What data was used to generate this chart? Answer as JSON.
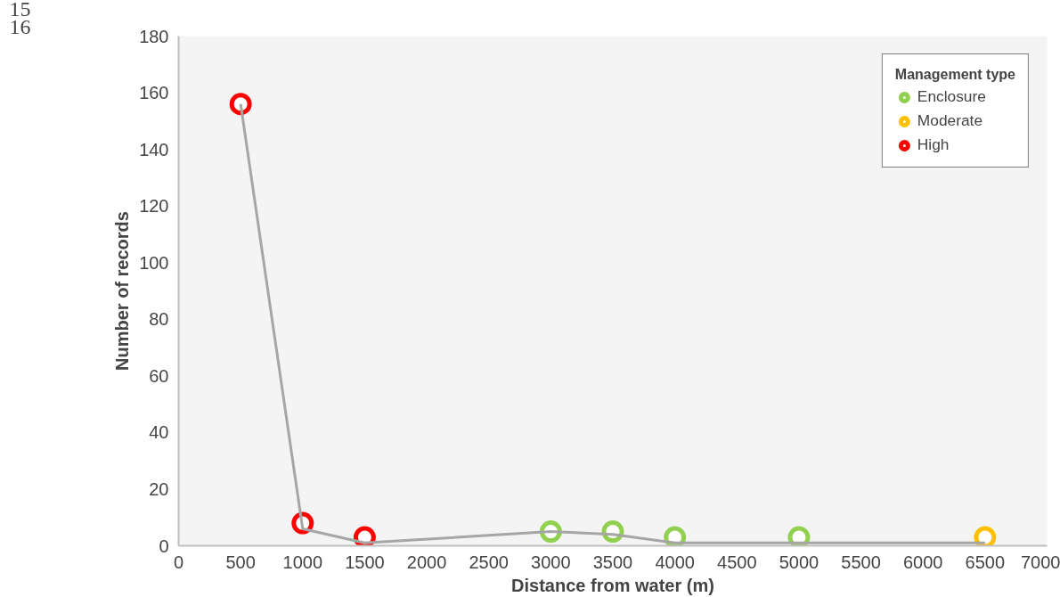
{
  "chart_data": {
    "type": "line",
    "xlabel": "Distance from water (m)",
    "ylabel": "Number of records",
    "legend_title": "Management type",
    "annotations": [
      "15",
      "16"
    ],
    "xlim": [
      0,
      7000
    ],
    "xticks": [
      0,
      500,
      1000,
      1500,
      2000,
      2500,
      3000,
      3500,
      4000,
      4500,
      5000,
      5500,
      6000,
      6500,
      7000
    ],
    "ylim": [
      0,
      180
    ],
    "yticks": [
      0,
      20,
      40,
      60,
      80,
      100,
      120,
      140,
      160,
      180
    ],
    "grid": false,
    "legend": "top right",
    "marker": "circle",
    "line_style": "solid",
    "series": [
      {
        "type": "scatter",
        "name": "Enclosure",
        "color": "#92d050",
        "x": [
          3000,
          3500,
          4000,
          5000
        ],
        "values": [
          5,
          5,
          3,
          3
        ]
      },
      {
        "type": "scatter",
        "name": "Moderate",
        "color": "#ffc000",
        "x": [
          6500
        ],
        "values": [
          3
        ]
      },
      {
        "type": "scatter",
        "name": "High",
        "color": "#ff0000",
        "x": [
          500,
          1000,
          1500
        ],
        "values": [
          156,
          8,
          3
        ]
      },
      {
        "color": "#a6a6a6",
        "marker": "none",
        "x": [
          500,
          1000,
          1500,
          3000,
          3500,
          4000,
          5000,
          6500
        ],
        "values": [
          156,
          6,
          1,
          5,
          4,
          1,
          1,
          1
        ]
      }
    ]
  }
}
